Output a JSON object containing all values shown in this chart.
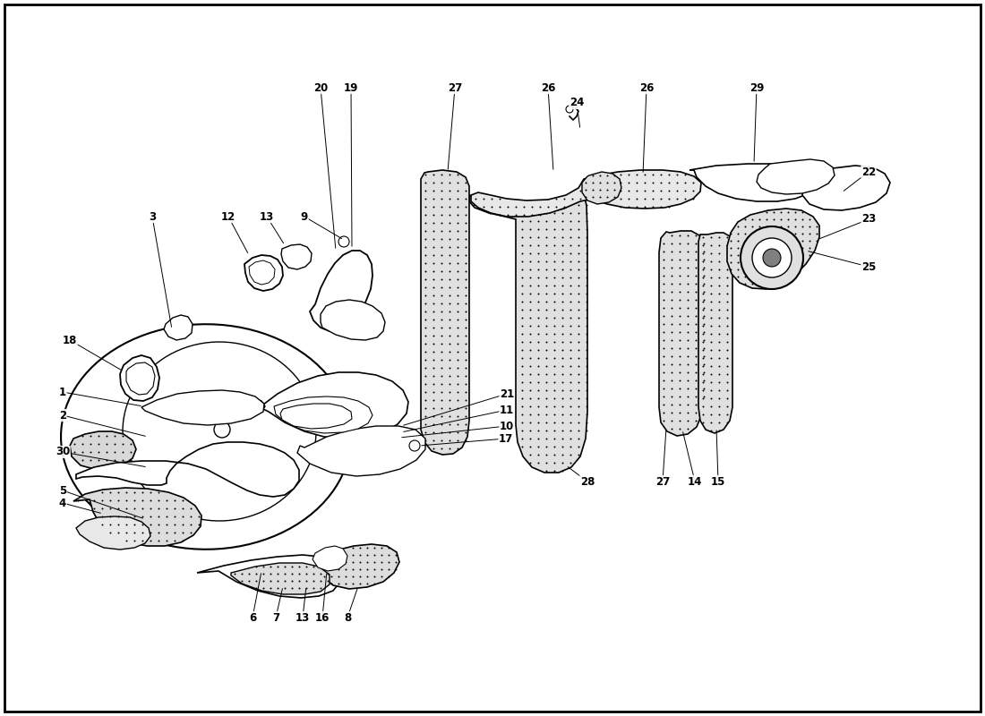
{
  "background_color": "#ffffff",
  "line_color": "#000000",
  "figure_width": 11.0,
  "figure_height": 8.0,
  "dpi": 100
}
